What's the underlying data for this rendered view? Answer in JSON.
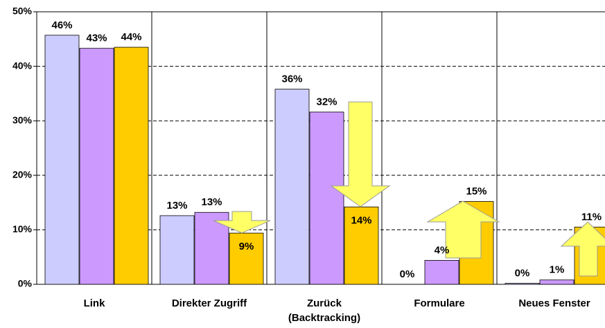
{
  "chart_data": {
    "type": "bar",
    "categories": [
      "Link",
      "Direkter Zugriff",
      "Zurück\n(Backtracking)",
      "Formulare",
      "Neues Fenster"
    ],
    "series": [
      {
        "color": "#ccccff",
        "values": [
          45.7,
          12.6,
          35.8,
          0,
          0.2
        ],
        "value_labels": [
          "46%",
          "13%",
          "36%",
          "0%",
          "0%"
        ]
      },
      {
        "color": "#cc99ff",
        "values": [
          43.3,
          13.2,
          31.6,
          4.4,
          0.8
        ],
        "value_labels": [
          "43%",
          "13%",
          "32%",
          "4%",
          "1%"
        ]
      },
      {
        "color": "#ffcc00",
        "values": [
          43.5,
          9.4,
          14.2,
          15.2,
          10.5
        ],
        "value_labels": [
          "44%",
          "9%",
          "14%",
          "15%",
          "11%"
        ]
      }
    ],
    "ylim": [
      0,
      50
    ],
    "yticks": [
      {
        "value": 0,
        "label": "0%"
      },
      {
        "value": 10,
        "label": "10%"
      },
      {
        "value": 20,
        "label": "20%"
      },
      {
        "value": 30,
        "label": "30%"
      },
      {
        "value": 40,
        "label": "40%"
      },
      {
        "value": 50,
        "label": "50%"
      }
    ],
    "grid": true
  }
}
